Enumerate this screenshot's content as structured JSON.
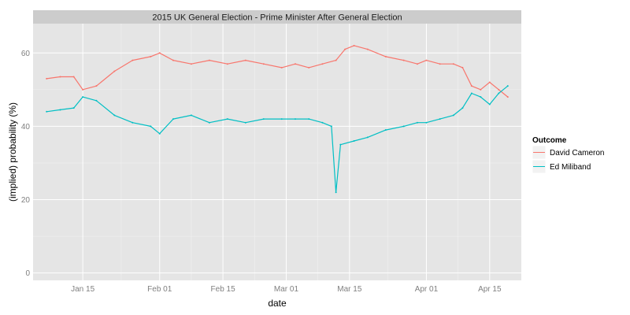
{
  "chart_data": {
    "type": "line",
    "title": "2015 UK General Election - Prime Minister After General Election",
    "xlabel": "date",
    "ylabel": "(implied) probability (%)",
    "x_ticks": [
      "Jan 15",
      "Feb 01",
      "Feb 15",
      "Mar 01",
      "Mar 15",
      "Apr 01",
      "Apr 15"
    ],
    "y_ticks": [
      "0",
      "20",
      "40",
      "60"
    ],
    "xlim": [
      "2015-01-04",
      "2015-04-22"
    ],
    "ylim": [
      -2,
      68
    ],
    "grid": true,
    "legend_position": "right",
    "legend": {
      "title": "Outcome",
      "items": [
        {
          "label": "David Cameron",
          "color": "#F8766D"
        },
        {
          "label": "Ed Miliband",
          "color": "#00BFC4"
        }
      ]
    },
    "series": [
      {
        "name": "David Cameron",
        "color": "#F8766D",
        "x": [
          "2015-01-07",
          "2015-01-10",
          "2015-01-13",
          "2015-01-15",
          "2015-01-18",
          "2015-01-22",
          "2015-01-26",
          "2015-01-30",
          "2015-02-01",
          "2015-02-04",
          "2015-02-08",
          "2015-02-12",
          "2015-02-16",
          "2015-02-20",
          "2015-02-24",
          "2015-02-28",
          "2015-03-03",
          "2015-03-06",
          "2015-03-09",
          "2015-03-12",
          "2015-03-14",
          "2015-03-16",
          "2015-03-19",
          "2015-03-23",
          "2015-03-27",
          "2015-03-30",
          "2015-04-01",
          "2015-04-04",
          "2015-04-07",
          "2015-04-09",
          "2015-04-11",
          "2015-04-13",
          "2015-04-15",
          "2015-04-17",
          "2015-04-19"
        ],
        "values": [
          53,
          53.5,
          53.5,
          50,
          51,
          55,
          58,
          59,
          60,
          58,
          57,
          58,
          57,
          58,
          57,
          56,
          57,
          56,
          57,
          58,
          61,
          62,
          61,
          59,
          58,
          57,
          58,
          57,
          57,
          56,
          51,
          50,
          52,
          50,
          48
        ]
      },
      {
        "name": "Ed Miliband",
        "color": "#00BFC4",
        "x": [
          "2015-01-07",
          "2015-01-10",
          "2015-01-13",
          "2015-01-15",
          "2015-01-18",
          "2015-01-22",
          "2015-01-26",
          "2015-01-30",
          "2015-02-01",
          "2015-02-04",
          "2015-02-08",
          "2015-02-12",
          "2015-02-16",
          "2015-02-20",
          "2015-02-24",
          "2015-02-28",
          "2015-03-03",
          "2015-03-06",
          "2015-03-09",
          "2015-03-11",
          "2015-03-12",
          "2015-03-13",
          "2015-03-16",
          "2015-03-19",
          "2015-03-23",
          "2015-03-27",
          "2015-03-30",
          "2015-04-01",
          "2015-04-04",
          "2015-04-07",
          "2015-04-09",
          "2015-04-11",
          "2015-04-13",
          "2015-04-15",
          "2015-04-17",
          "2015-04-19"
        ],
        "values": [
          44,
          44.5,
          45,
          48,
          47,
          43,
          41,
          40,
          38,
          42,
          43,
          41,
          42,
          41,
          42,
          42,
          42,
          42,
          41,
          40,
          22,
          35,
          36,
          37,
          39,
          40,
          41,
          41,
          42,
          43,
          45,
          49,
          48,
          46,
          49,
          51
        ]
      }
    ]
  }
}
